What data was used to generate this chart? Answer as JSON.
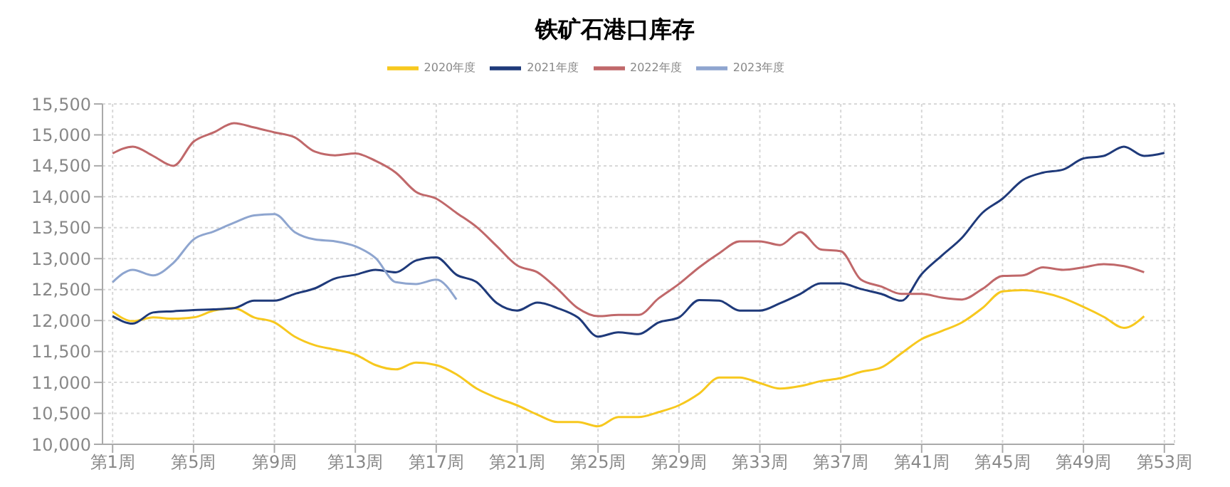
{
  "chart_data": {
    "type": "line",
    "title": "铁矿石港口库存",
    "categories": [
      "第1周",
      null,
      null,
      null,
      "第5周",
      null,
      null,
      null,
      "第9周",
      null,
      null,
      null,
      "第13周",
      null,
      null,
      null,
      "第17周",
      null,
      null,
      null,
      "第21周",
      null,
      null,
      null,
      "第25周",
      null,
      null,
      null,
      "第29周",
      null,
      null,
      null,
      "第33周",
      null,
      null,
      null,
      "第37周",
      null,
      null,
      null,
      "第41周",
      null,
      null,
      null,
      "第45周",
      null,
      null,
      null,
      "第49周",
      null,
      null,
      null,
      "第53周"
    ],
    "series": [
      {
        "name": "2020年度",
        "color": "#f7c81e",
        "values": [
          12140,
          11990,
          12050,
          12030,
          12050,
          12160,
          12200,
          12050,
          11970,
          11740,
          11600,
          11530,
          11450,
          11280,
          11210,
          11320,
          11280,
          11130,
          10900,
          10750,
          10630,
          10480,
          10360,
          10360,
          10290,
          10440,
          10440,
          10520,
          10630,
          10820,
          11080,
          11080,
          10990,
          10900,
          10940,
          11020,
          11070,
          11170,
          11240,
          11470,
          11700,
          11830,
          11970,
          12200,
          12470,
          12490,
          12450,
          12360,
          12220,
          12060,
          11880,
          12070,
          null
        ]
      },
      {
        "name": "2021年度",
        "color": "#1f3a7a",
        "values": [
          12070,
          11950,
          12130,
          12150,
          12170,
          12180,
          12200,
          12320,
          12320,
          12430,
          12520,
          12680,
          12740,
          12820,
          12780,
          12970,
          13020,
          12740,
          12620,
          12280,
          12160,
          12290,
          12200,
          12050,
          11740,
          11810,
          11780,
          11970,
          12050,
          12330,
          12320,
          12160,
          12160,
          12280,
          12430,
          12600,
          12600,
          12510,
          12430,
          12320,
          12750,
          13050,
          13340,
          13740,
          13970,
          14270,
          14390,
          14440,
          14620,
          14660,
          14810,
          14660,
          14710
        ]
      },
      {
        "name": "2022年度",
        "color": "#c0686a",
        "values": [
          14700,
          14810,
          14660,
          14500,
          14890,
          15040,
          15190,
          15120,
          15040,
          14960,
          14730,
          14670,
          14700,
          14580,
          14390,
          14080,
          13970,
          13740,
          13510,
          13200,
          12890,
          12780,
          12510,
          12200,
          12070,
          12090,
          12090,
          12360,
          12590,
          12860,
          13090,
          13280,
          13280,
          13220,
          13430,
          13150,
          13120,
          12660,
          12550,
          12430,
          12430,
          12370,
          12340,
          12510,
          12720,
          12730,
          12860,
          12820,
          12860,
          12910,
          12880,
          12780,
          null
        ]
      },
      {
        "name": "2023年度",
        "color": "#8ea5cf",
        "values": [
          12620,
          12820,
          12730,
          12930,
          13310,
          13440,
          13580,
          13700,
          13720,
          13430,
          13310,
          13280,
          13200,
          13010,
          12620,
          12590,
          12660,
          12340,
          null,
          null,
          null,
          null,
          null,
          null,
          null,
          null,
          null,
          null,
          null,
          null,
          null,
          null,
          null,
          null,
          null,
          null,
          null,
          null,
          null,
          null,
          null,
          null,
          null,
          null,
          null,
          null,
          null,
          null,
          null,
          null,
          null,
          null,
          null
        ]
      }
    ],
    "ylim": [
      10000,
      15500
    ],
    "yticks": [
      {
        "value": 10000,
        "label": "10,000"
      },
      {
        "value": 10500,
        "label": "10,500"
      },
      {
        "value": 11000,
        "label": "11,000"
      },
      {
        "value": 11500,
        "label": "11,500"
      },
      {
        "value": 12000,
        "label": "12,000"
      },
      {
        "value": 12500,
        "label": "12,500"
      },
      {
        "value": 13000,
        "label": "13,000"
      },
      {
        "value": 13500,
        "label": "13,500"
      },
      {
        "value": 14000,
        "label": "14,000"
      },
      {
        "value": 14500,
        "label": "14,500"
      },
      {
        "value": 15000,
        "label": "15,000"
      },
      {
        "value": 15500,
        "label": "15,500"
      }
    ],
    "grid": true,
    "legend": "top",
    "marker": "none",
    "line_style": "solid"
  }
}
